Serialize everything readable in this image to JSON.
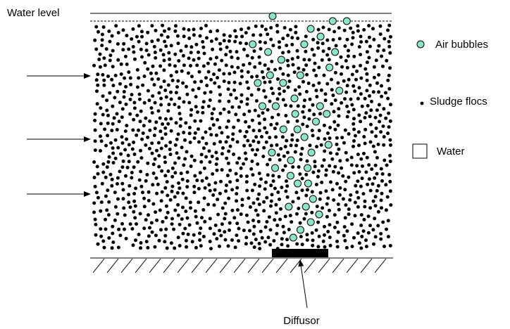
{
  "labels": {
    "water_level": "Water level",
    "air_bubbles": "Air bubbles",
    "sludge_flocs": "Sludge flocs",
    "water": "Water",
    "diffusor": "Diffusor"
  }
}
